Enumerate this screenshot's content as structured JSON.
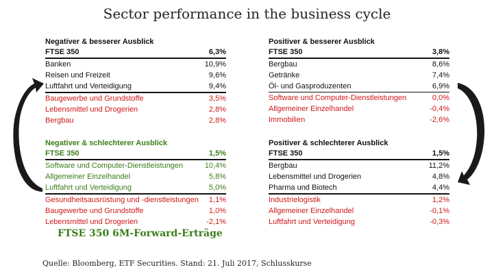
{
  "chart_data": {
    "type": "table",
    "title": "Sector performance in the business cycle",
    "subtitle": "FTSE 350 6M-Forward-Erträge",
    "source": "Quelle: Bloomberg, ETF Securities. Stand: 21. Juli 2017, Schlusskurse",
    "panels": [
      {
        "heading": "Negativer & besserer Ausblick",
        "index_label": "FTSE 350",
        "index_value": "6,3%",
        "top": [
          {
            "name": "Banken",
            "value": "10,9%"
          },
          {
            "name": "Reisen und Freizeit",
            "value": "9,6%"
          },
          {
            "name": "Luftfahrt und Verteidigung",
            "value": "9,4%"
          }
        ],
        "bottom": [
          {
            "name": "Baugewerbe und Grundstoffe",
            "value": "3,5%"
          },
          {
            "name": "Lebensmittel und Drogerien",
            "value": "2,8%"
          },
          {
            "name": "Bergbau",
            "value": "2,8%"
          }
        ]
      },
      {
        "heading": "Positiver & besserer Ausblick",
        "index_label": "FTSE 350",
        "index_value": "3,8%",
        "top": [
          {
            "name": "Bergbau",
            "value": "8,6%"
          },
          {
            "name": "Getränke",
            "value": "7,4%"
          },
          {
            "name": "Öl- und Gasproduzenten",
            "value": "6,9%"
          }
        ],
        "bottom": [
          {
            "name": "Software und Computer-Dienstleistungen",
            "value": "0,0%"
          },
          {
            "name": "Allgemeiner Einzelhandel",
            "value": "-0,4%"
          },
          {
            "name": "Immobilien",
            "value": "-2,6%"
          }
        ]
      },
      {
        "heading": "Negativer & schlechterer Ausblick",
        "index_label": "FTSE 350",
        "index_value": "1,5%",
        "top": [
          {
            "name": "Software und Computer-Dienstleistungen",
            "value": "10,4%"
          },
          {
            "name": "Allgemeiner Einzelhandel",
            "value": "5,8%"
          },
          {
            "name": "Luftfahrt und Verteidigung",
            "value": "5,0%"
          }
        ],
        "bottom": [
          {
            "name": "Gesundheitsausrüstung und -dienstleistungen",
            "value": "1,1%"
          },
          {
            "name": "Baugewerbe und Grundstoffe",
            "value": "1,0%"
          },
          {
            "name": "Lebensmittel und Drogerien",
            "value": "-2,1%"
          }
        ]
      },
      {
        "heading": "Positiver & schlechterer Ausblick",
        "index_label": "FTSE 350",
        "index_value": "1,5%",
        "top": [
          {
            "name": "Bergbau",
            "value": "11,2%"
          },
          {
            "name": "Lebensmittel und Drogerien",
            "value": "4,8%"
          },
          {
            "name": "Pharma und Biotech",
            "value": "4,4%"
          }
        ],
        "bottom": [
          {
            "name": "Industrielogistik",
            "value": "1,2%"
          },
          {
            "name": "Allgemeiner Einzelhandel",
            "value": "-0,1%"
          },
          {
            "name": "Luftfahrt und Verteidigung",
            "value": "-0,3%"
          }
        ]
      }
    ],
    "colors": {
      "top_rows": "#111111",
      "bottom_rows": "#d01818",
      "green_panel": "#3a7d1a"
    }
  }
}
